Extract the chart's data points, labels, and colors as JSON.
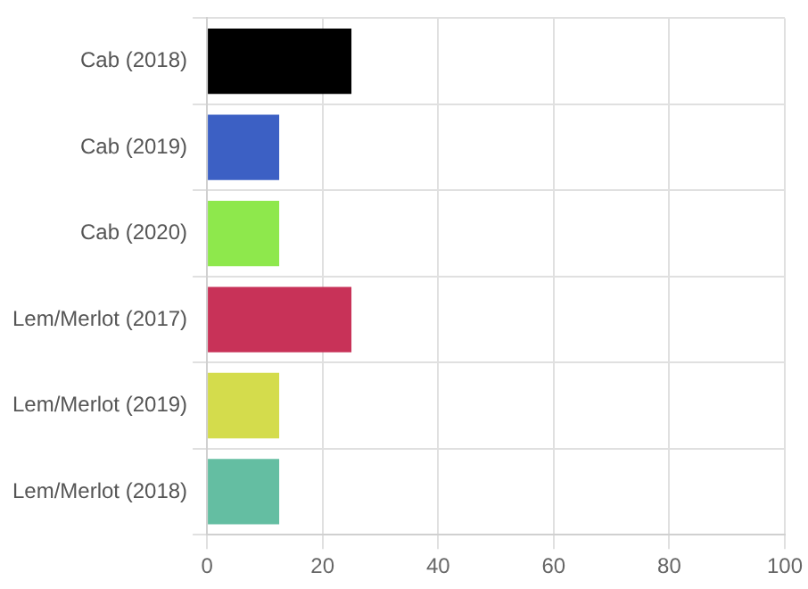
{
  "chart_data": {
    "type": "bar",
    "orientation": "horizontal",
    "categories": [
      "Cab (2018)",
      "Cab (2019)",
      "Cab (2020)",
      "Lem/Merlot (2017)",
      "Lem/Merlot (2019)",
      "Lem/Merlot (2018)"
    ],
    "values": [
      25,
      12.5,
      12.5,
      25,
      12.5,
      12.5
    ],
    "colors": [
      "#000000",
      "#3c60c4",
      "#8ee84c",
      "#c83258",
      "#d4dc4c",
      "#64bea2"
    ],
    "xlim": [
      0,
      100
    ],
    "xticks": [
      0,
      20,
      40,
      60,
      80,
      100
    ],
    "grid": true,
    "legend": false
  }
}
